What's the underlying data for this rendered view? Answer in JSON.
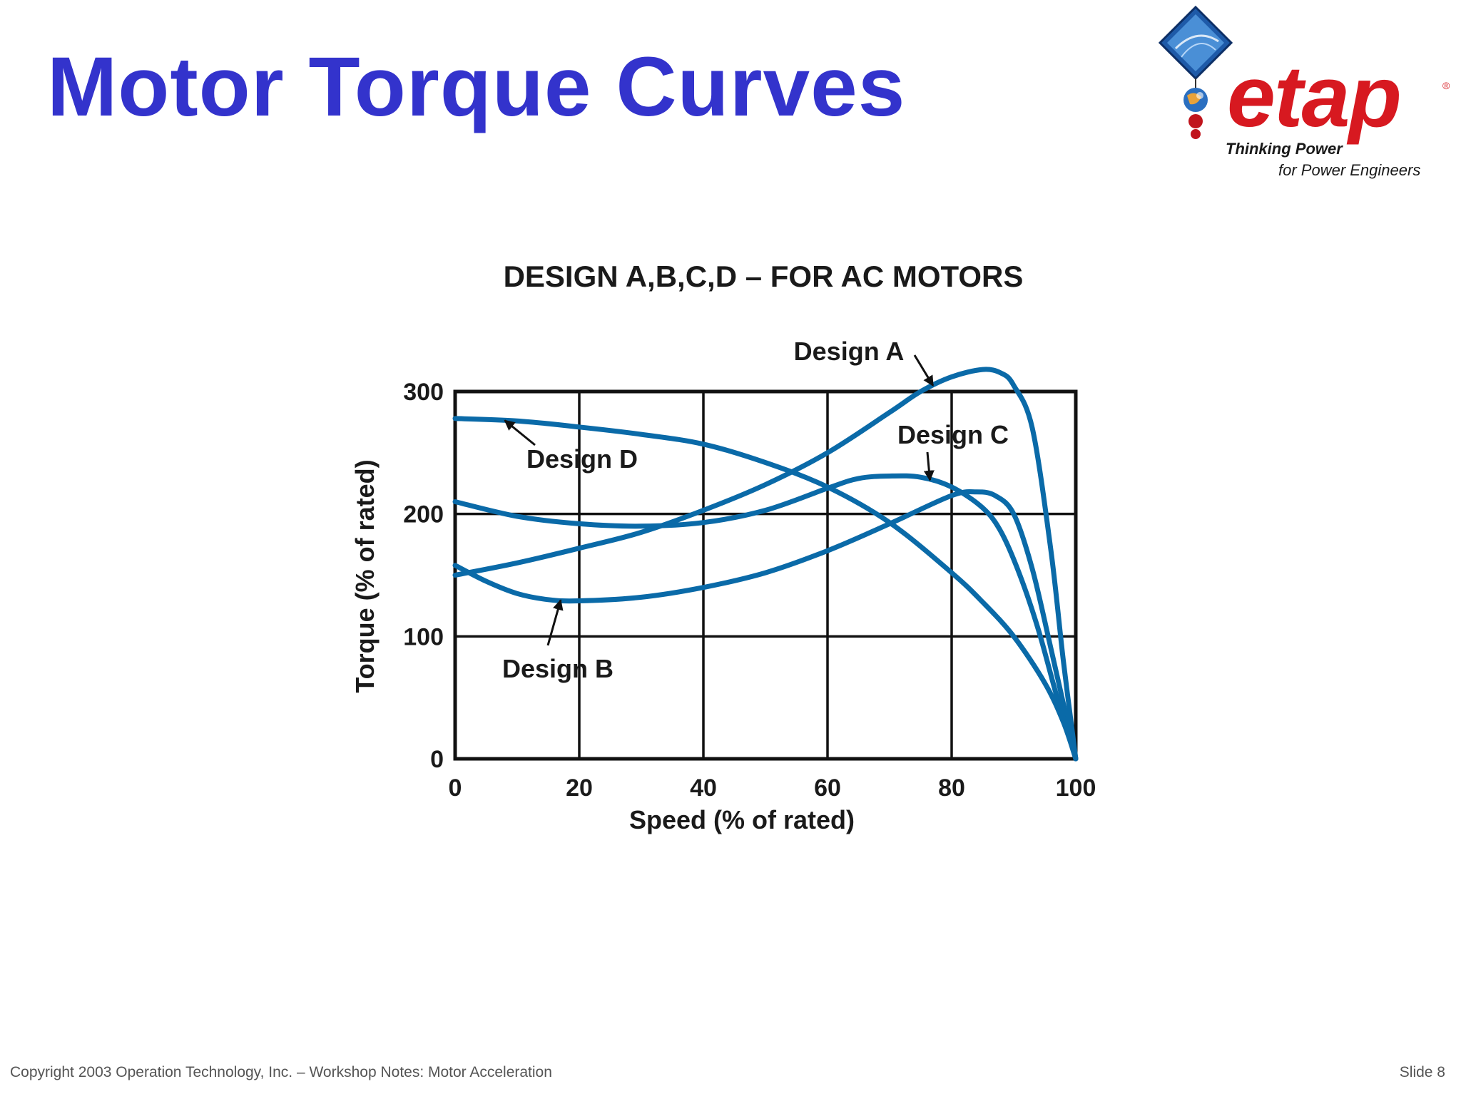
{
  "slide": {
    "title": "Motor Torque Curves",
    "title_color": "#3333CC",
    "footer_left": "Copyright 2003 Operation Technology, Inc. – Workshop Notes: Motor Acceleration",
    "footer_right": "Slide 8"
  },
  "logo": {
    "word": "etap",
    "registered": "®",
    "tagline_1": "Thinking Power",
    "tagline_2": "for Power Engineers",
    "word_color": "#D71920",
    "icon_names": [
      "diamond-frame-icon",
      "globe-icon",
      "red-balls-icon"
    ]
  },
  "chart_data": {
    "type": "line",
    "title": "DESIGN A,B,C,D – FOR AC MOTORS",
    "xlabel": "Speed (% of rated)",
    "ylabel": "Torque (% of rated)",
    "xlim": [
      0,
      100
    ],
    "ylim": [
      0,
      300
    ],
    "xticks": [
      0,
      20,
      40,
      60,
      80,
      100
    ],
    "yticks": [
      0,
      100,
      200,
      300
    ],
    "grid": true,
    "line_color": "#0A6AA8",
    "series": [
      {
        "name": "Design A",
        "x": [
          0,
          10,
          20,
          30,
          40,
          50,
          60,
          70,
          75,
          80,
          85,
          88,
          90,
          93,
          96,
          98,
          100
        ],
        "y": [
          150,
          160,
          172,
          185,
          203,
          224,
          250,
          283,
          300,
          312,
          318,
          315,
          305,
          270,
          170,
          80,
          0
        ]
      },
      {
        "name": "Design B",
        "x": [
          0,
          5,
          10,
          15,
          20,
          30,
          40,
          50,
          60,
          70,
          80,
          84,
          87,
          90,
          93,
          96,
          100
        ],
        "y": [
          158,
          145,
          135,
          130,
          129,
          132,
          140,
          152,
          170,
          192,
          215,
          218,
          215,
          200,
          155,
          90,
          0
        ]
      },
      {
        "name": "Design C",
        "x": [
          0,
          10,
          20,
          30,
          40,
          50,
          60,
          65,
          70,
          75,
          80,
          85,
          88,
          91,
          94,
          97,
          100
        ],
        "y": [
          210,
          198,
          192,
          190,
          193,
          203,
          221,
          229,
          231,
          230,
          222,
          205,
          185,
          150,
          105,
          50,
          0
        ]
      },
      {
        "name": "Design D",
        "x": [
          0,
          10,
          20,
          30,
          40,
          50,
          60,
          70,
          80,
          85,
          90,
          95,
          98,
          100
        ],
        "y": [
          278,
          276,
          271,
          265,
          257,
          242,
          222,
          193,
          152,
          128,
          100,
          62,
          30,
          0
        ]
      }
    ],
    "annotations": [
      {
        "text": "Design A",
        "series": "Design A",
        "at_x": 77
      },
      {
        "text": "Design B",
        "series": "Design B",
        "at_x": 17
      },
      {
        "text": "Design C",
        "series": "Design C",
        "at_x": 76.5
      },
      {
        "text": "Design D",
        "series": "Design D",
        "at_x": 8
      }
    ]
  }
}
